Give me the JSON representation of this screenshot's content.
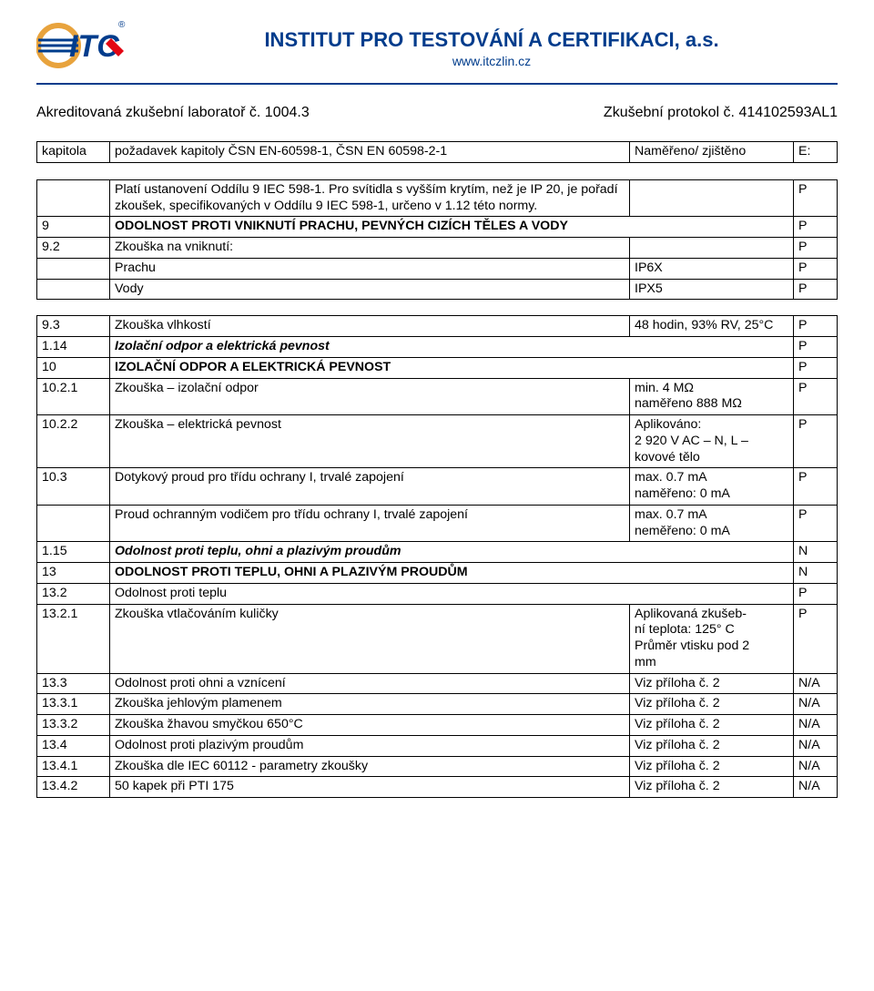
{
  "header": {
    "title": "INSTITUT PRO TESTOVÁNÍ A CERTIFIKACI, a.s.",
    "subtitle": "www.itczlin.cz",
    "lab_left": "Akreditovaná zkušební laboratoř č. 1004.3",
    "lab_right": "Zkušební protokol č. 414102593AL1"
  },
  "logo": {
    "primary_color": "#003c8c",
    "accent_color": "#e30613",
    "text": "ITC"
  },
  "thead": {
    "c1": "kapitola",
    "c2": "požadavek kapitoly ČSN EN-60598-1, ČSN EN 60598-2-1",
    "c3": "Naměřeno/ zjištěno",
    "c4": "E:"
  },
  "rows": [
    {
      "a": "",
      "b": "Platí ustanovení Oddílu 9 IEC 598-1. Pro svítidla s vyšším krytím, než je IP 20, je pořadí zkoušek, specifikovaných v Oddílu 9 IEC 598-1, určeno v 1.12 této normy.",
      "c": "",
      "d": "P"
    },
    {
      "a": "9",
      "b": "ODOLNOST PROTI VNIKNUTÍ PRACHU, PEVNÝCH CIZÍCH TĚLES A VODY",
      "c": "",
      "d": "P",
      "merge_bc": true,
      "bold": true
    },
    {
      "a": "9.2",
      "b": "Zkouška na vniknutí:",
      "c": "",
      "d": "P"
    },
    {
      "a": "",
      "b": "Prachu",
      "c": "IP6X",
      "d": "P"
    },
    {
      "a": "",
      "b": "Vody",
      "c": "IPX5",
      "d": "P"
    },
    {
      "spacer": true
    },
    {
      "a": "9.3",
      "b": "Zkouška vlhkostí",
      "c": "48 hodin, 93% RV, 25°C",
      "d": "P"
    },
    {
      "a": "1.14",
      "b": "Izolační odpor a elektrická pevnost",
      "c": "",
      "d": "P",
      "merge_bc": true,
      "bolditalic": true
    },
    {
      "a": "10",
      "b": "IZOLAČNÍ ODPOR A ELEKTRICKÁ PEVNOST",
      "c": "",
      "d": "P",
      "merge_bc": true,
      "bold": true
    },
    {
      "a": "10.2.1",
      "b": "Zkouška – izolační odpor",
      "c": "min. 4 MΩ\nnaměřeno 888 MΩ",
      "d": "P"
    },
    {
      "a": "10.2.2",
      "b": "Zkouška – elektrická pevnost",
      "c": "Aplikováno:\n2 920 V AC – N, L –\nkovové tělo",
      "d": "P"
    },
    {
      "a": "10.3",
      "b": "Dotykový proud pro třídu ochrany I, trvalé zapojení",
      "c": "max. 0.7 mA\nnaměřeno: 0 mA",
      "d": "P"
    },
    {
      "a": "",
      "b": "Proud ochranným vodičem pro třídu ochrany I, trvalé zapojení",
      "c": "max. 0.7 mA\nneměřeno: 0 mA",
      "d": "P"
    },
    {
      "a": "1.15",
      "b": "Odolnost proti teplu, ohni a plazivým proudům",
      "c": "",
      "d": "N",
      "merge_bc": true,
      "bolditalic": true
    },
    {
      "a": "13",
      "b": "ODOLNOST PROTI TEPLU, OHNI A PLAZIVÝM PROUDŮM",
      "c": "",
      "d": "N",
      "merge_bc": true,
      "bold": true
    },
    {
      "a": "13.2",
      "b": "Odolnost proti teplu",
      "c": "",
      "d": "P",
      "merge_bc": true
    },
    {
      "a": "13.2.1",
      "b": "Zkouška vtlačováním kuličky",
      "c": "Aplikovaná zkušeb-\nní teplota: 125° C\nPrůměr vtisku pod 2\nmm",
      "d": "P"
    },
    {
      "a": "13.3",
      "b": "Odolnost proti ohni a vznícení",
      "c": "Viz příloha č. 2",
      "d": "N/A"
    },
    {
      "a": "13.3.1",
      "b": "Zkouška jehlovým plamenem",
      "c": "Viz příloha č. 2",
      "d": "N/A"
    },
    {
      "a": "13.3.2",
      "b": "Zkouška žhavou smyčkou 650°C",
      "c": "Viz příloha č. 2",
      "d": "N/A"
    },
    {
      "a": "13.4",
      "b": "Odolnost proti plazivým proudům",
      "c": "Viz příloha č. 2",
      "d": "N/A"
    },
    {
      "a": "13.4.1",
      "b": "Zkouška dle IEC 60112 - parametry zkoušky",
      "c": "Viz příloha č. 2",
      "d": "N/A"
    },
    {
      "a": "13.4.2",
      "b": "50 kapek při PTI 175",
      "c": "Viz příloha č. 2",
      "d": "N/A"
    }
  ]
}
